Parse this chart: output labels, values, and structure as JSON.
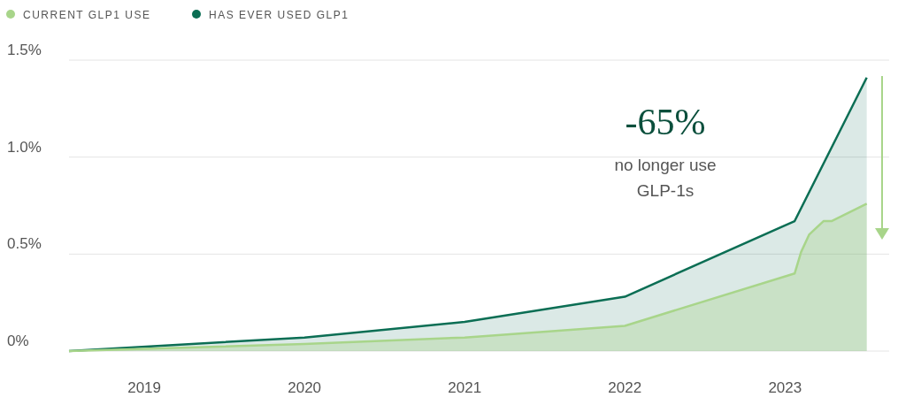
{
  "chart_data": {
    "type": "area",
    "x": [
      2018.53,
      2020,
      2021,
      2022,
      2023.06,
      2023.51
    ],
    "series": [
      {
        "name": "HAS EVER USED GLP1",
        "color": "#0b6e54",
        "values": [
          0,
          0.07,
          0.15,
          0.28,
          0.67,
          1.41
        ]
      },
      {
        "name": "CURRENT GLP1 USE",
        "color": "#a8d58a",
        "x": [
          2018.53,
          2020,
          2021,
          2022,
          2023.06,
          2023.1,
          2023.15,
          2023.24,
          2023.29,
          2023.51
        ],
        "values": [
          0,
          0.036,
          0.07,
          0.13,
          0.4,
          0.51,
          0.6,
          0.67,
          0.67,
          0.76
        ]
      }
    ],
    "xlim": [
      2018.53,
      2023.65
    ],
    "xticks": [
      2019,
      2020,
      2021,
      2022,
      2023
    ],
    "ylim": [
      0,
      1.5
    ],
    "yticks": [
      {
        "value": 0,
        "label": "0%"
      },
      {
        "value": 0.5,
        "label": "0.5%"
      },
      {
        "value": 1,
        "label": "1.0%"
      },
      {
        "value": 1.5,
        "label": "1.5%"
      }
    ],
    "grid": "y",
    "legend": "top left",
    "marker": "none",
    "line_style": "solid",
    "annotations": [
      "-65%",
      "no longer use GLP-1s"
    ]
  }
}
